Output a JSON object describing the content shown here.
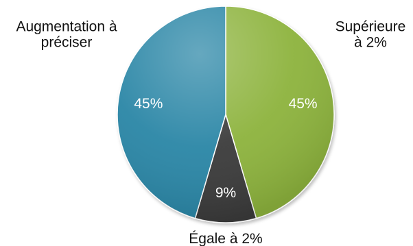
{
  "chart_data": {
    "type": "pie",
    "slices": [
      {
        "label_lines": [
          "Supérieure",
          "à 2%"
        ],
        "value": 45,
        "value_label": "45%",
        "color": "#8db33e"
      },
      {
        "label_lines": [
          "Égale à 2%"
        ],
        "value": 9,
        "value_label": "9%",
        "color": "#3b3b3b"
      },
      {
        "label_lines": [
          "Augmentation à",
          "préciser"
        ],
        "value": 45,
        "value_label": "45%",
        "color": "#2a86a6"
      }
    ],
    "start_angle_deg": 0,
    "direction": "clockwise",
    "legend": "none",
    "grid": false
  }
}
